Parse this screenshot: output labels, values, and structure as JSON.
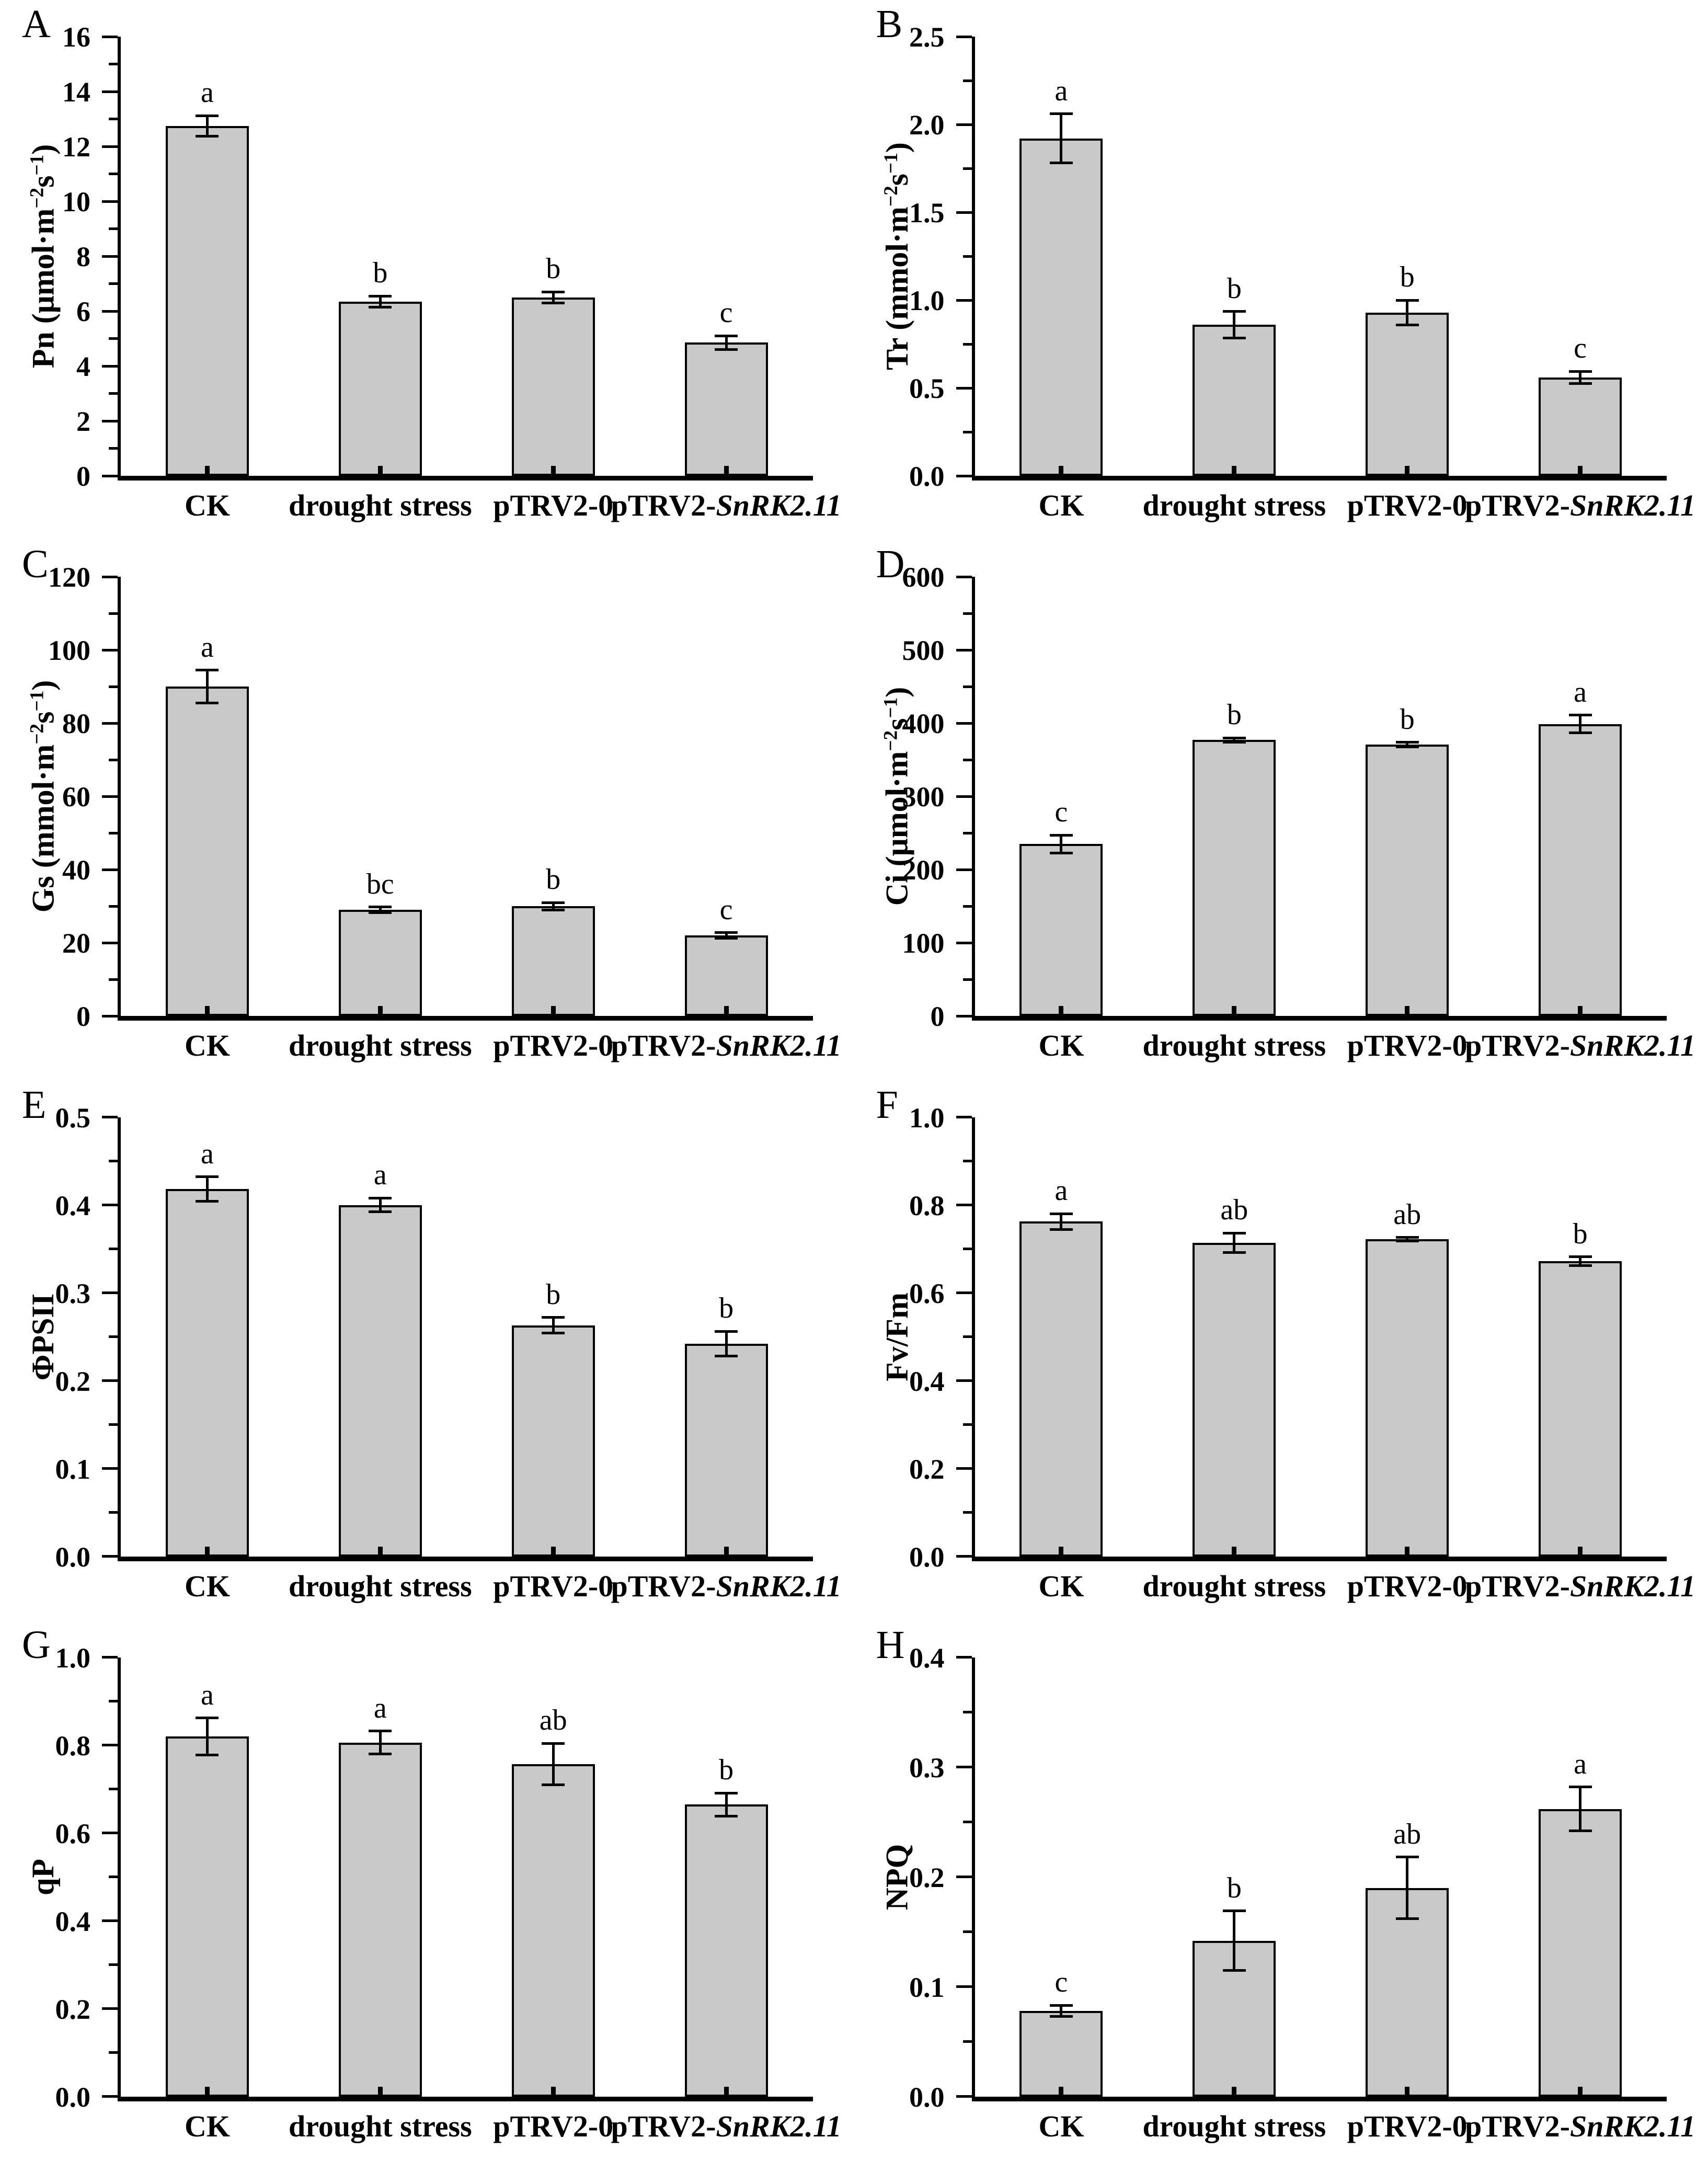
{
  "figure": {
    "background": "#ffffff",
    "bar_fill": "#c9c9c9",
    "bar_border": "#000000",
    "axis_color": "#000000"
  },
  "categories": [
    {
      "label": "CK"
    },
    {
      "label": "drought stress"
    },
    {
      "label": "pTRV2-0"
    },
    {
      "label": "pTRV2-",
      "italic": "SnRK2.11"
    }
  ],
  "chart_data": [
    {
      "panel": "A",
      "type": "bar",
      "ylabel_segments": [
        {
          "t": "Pn (μmol·m"
        },
        {
          "t": "−2",
          "sup": true
        },
        {
          "t": "s"
        },
        {
          "t": "−1",
          "sup": true
        },
        {
          "t": ")"
        }
      ],
      "ylim": [
        0,
        16
      ],
      "ytick_labels": [
        "0",
        "2",
        "4",
        "6",
        "8",
        "10",
        "12",
        "14",
        "16"
      ],
      "minor_ticks": true,
      "values": [
        12.75,
        6.35,
        6.5,
        4.85
      ],
      "errors": [
        0.37,
        0.2,
        0.2,
        0.25
      ],
      "letters": [
        "a",
        "b",
        "b",
        "c"
      ]
    },
    {
      "panel": "B",
      "type": "bar",
      "ylabel_segments": [
        {
          "t": "Tr (mmol·m"
        },
        {
          "t": "−2",
          "sup": true
        },
        {
          "t": "s"
        },
        {
          "t": "−1",
          "sup": true
        },
        {
          "t": ")"
        }
      ],
      "ylim": [
        0,
        2.5
      ],
      "ytick_labels": [
        "0.0",
        "0.5",
        "1.0",
        "1.5",
        "2.0",
        "2.5"
      ],
      "minor_ticks": true,
      "values": [
        1.92,
        0.86,
        0.93,
        0.56
      ],
      "errors": [
        0.14,
        0.075,
        0.07,
        0.035
      ],
      "letters": [
        "a",
        "b",
        "b",
        "c"
      ]
    },
    {
      "panel": "C",
      "type": "bar",
      "ylabel_segments": [
        {
          "t": "Gs (mmol·m"
        },
        {
          "t": "−2",
          "sup": true
        },
        {
          "t": "s"
        },
        {
          "t": "−1",
          "sup": true
        },
        {
          "t": ")"
        }
      ],
      "ylim": [
        0,
        120
      ],
      "ytick_labels": [
        "0",
        "20",
        "40",
        "60",
        "80",
        "100",
        "120"
      ],
      "minor_ticks": true,
      "values": [
        90,
        29,
        30,
        22
      ],
      "errors": [
        4.5,
        0.8,
        1.0,
        0.8
      ],
      "letters": [
        "a",
        "bc",
        "b",
        "c"
      ]
    },
    {
      "panel": "D",
      "type": "bar",
      "ylabel_segments": [
        {
          "t": "Ci (μmol·m"
        },
        {
          "t": "−2",
          "sup": true
        },
        {
          "t": "s"
        },
        {
          "t": "−1",
          "sup": true
        },
        {
          "t": ")"
        }
      ],
      "ylim": [
        0,
        600
      ],
      "ytick_labels": [
        "0",
        "100",
        "200",
        "300",
        "400",
        "500",
        "600"
      ],
      "minor_ticks": true,
      "values": [
        235,
        377,
        371,
        399
      ],
      "errors": [
        12,
        3,
        3,
        12
      ],
      "letters": [
        "c",
        "b",
        "b",
        "a"
      ]
    },
    {
      "panel": "E",
      "type": "bar",
      "ylabel_segments": [
        {
          "t": "ΦPSII"
        }
      ],
      "ylim": [
        0,
        0.5
      ],
      "ytick_labels": [
        "0.0",
        "0.1",
        "0.2",
        "0.3",
        "0.4",
        "0.5"
      ],
      "minor_ticks": true,
      "values": [
        0.418,
        0.4,
        0.263,
        0.242
      ],
      "errors": [
        0.014,
        0.008,
        0.009,
        0.014
      ],
      "letters": [
        "a",
        "a",
        "b",
        "b"
      ]
    },
    {
      "panel": "F",
      "type": "bar",
      "ylabel_segments": [
        {
          "t": "Fv/Fm"
        }
      ],
      "ylim": [
        0,
        1.0
      ],
      "ytick_labels": [
        "0.0",
        "0.2",
        "0.4",
        "0.6",
        "0.8",
        "1.0"
      ],
      "minor_ticks": true,
      "values": [
        0.762,
        0.714,
        0.722,
        0.672
      ],
      "errors": [
        0.018,
        0.022,
        0.004,
        0.01
      ],
      "letters": [
        "a",
        "ab",
        "ab",
        "b"
      ]
    },
    {
      "panel": "G",
      "type": "bar",
      "ylabel_segments": [
        {
          "t": "qP"
        }
      ],
      "ylim": [
        0,
        1.0
      ],
      "ytick_labels": [
        "0.0",
        "0.2",
        "0.4",
        "0.6",
        "0.8",
        "1.0"
      ],
      "minor_ticks": true,
      "values": [
        0.82,
        0.806,
        0.757,
        0.665
      ],
      "errors": [
        0.042,
        0.026,
        0.047,
        0.026
      ],
      "letters": [
        "a",
        "a",
        "ab",
        "b"
      ]
    },
    {
      "panel": "H",
      "type": "bar",
      "ylabel_segments": [
        {
          "t": "NPQ"
        }
      ],
      "ylim": [
        0,
        0.4
      ],
      "ytick_labels": [
        "0.0",
        "0.1",
        "0.2",
        "0.3",
        "0.4"
      ],
      "minor_ticks": true,
      "values": [
        0.078,
        0.142,
        0.19,
        0.262
      ],
      "errors": [
        0.005,
        0.027,
        0.028,
        0.02
      ],
      "letters": [
        "c",
        "b",
        "ab",
        "a"
      ]
    }
  ]
}
